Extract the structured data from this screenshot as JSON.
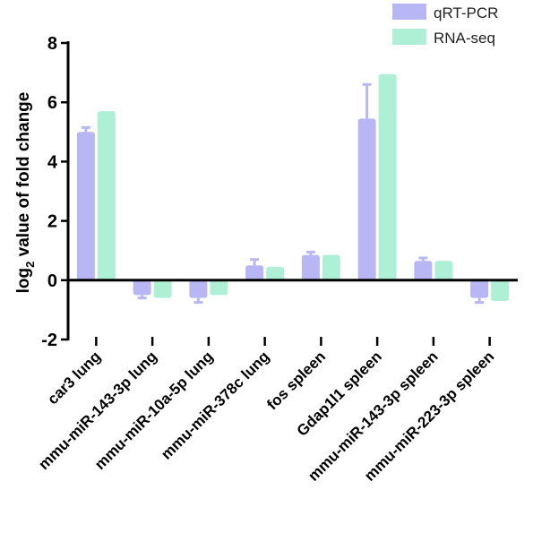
{
  "chart_data": {
    "type": "bar",
    "ylabel_main": "log",
    "ylabel_sub": "2",
    "ylabel_rest": " value of fold change",
    "ylim": [
      -2,
      8
    ],
    "yticks": [
      "-2",
      "0",
      "2",
      "4",
      "6",
      "8"
    ],
    "legend_position": "top-right",
    "categories": [
      "car3  lung",
      "mmu-miR-143-3p lung",
      "mmu-miR-10a-5p lung",
      "mmu-miR-378c lung",
      "fos spleen",
      "Gdap1l1 spleen",
      "mmu-miR-143-3p spleen",
      "mmu-miR-223-3p spleen"
    ],
    "series": [
      {
        "name": "qRT-PCR",
        "color": "#b9b6f5",
        "values": [
          5.0,
          -0.5,
          -0.6,
          0.5,
          0.85,
          5.45,
          0.65,
          -0.6
        ],
        "errors": [
          0.15,
          0.1,
          0.15,
          0.2,
          0.1,
          1.15,
          0.1,
          0.15
        ]
      },
      {
        "name": "RNA-seq",
        "color": "#aef0d6",
        "values": [
          5.7,
          -0.6,
          -0.5,
          0.45,
          0.85,
          6.95,
          0.65,
          -0.7
        ],
        "errors": [
          0,
          0,
          0,
          0,
          0,
          0,
          0,
          0
        ]
      }
    ]
  }
}
